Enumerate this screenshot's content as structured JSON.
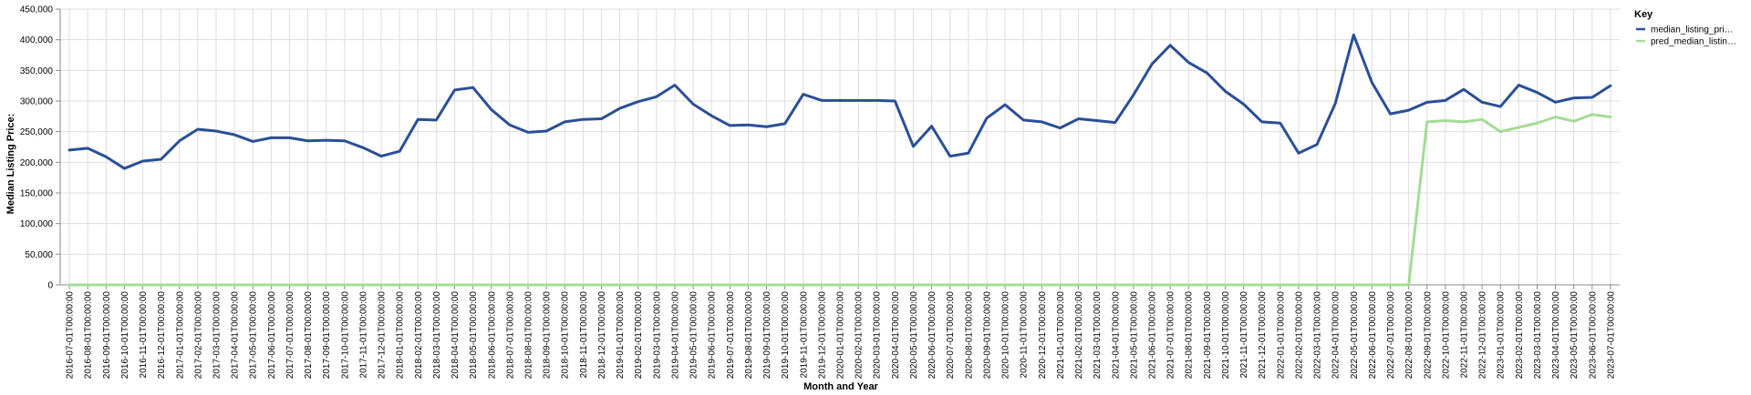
{
  "chart_data": {
    "type": "line",
    "xlabel": "Month and Year",
    "ylabel": "Median Listing Price:",
    "ylim": [
      0,
      450000
    ],
    "yticks": [
      "0",
      "50,000",
      "100,000",
      "150,000",
      "200,000",
      "250,000",
      "300,000",
      "350,000",
      "400,000",
      "450,000"
    ],
    "ytick_values": [
      0,
      50000,
      100000,
      150000,
      200000,
      250000,
      300000,
      350000,
      400000,
      450000
    ],
    "grid": true,
    "legend": {
      "title": "Key",
      "placement": "top-right"
    },
    "x": [
      "2016-07-01T00:00:00",
      "2016-08-01T00:00:00",
      "2016-09-01T00:00:00",
      "2016-10-01T00:00:00",
      "2016-11-01T00:00:00",
      "2016-12-01T00:00:00",
      "2017-01-01T00:00:00",
      "2017-02-01T00:00:00",
      "2017-03-01T00:00:00",
      "2017-04-01T00:00:00",
      "2017-05-01T00:00:00",
      "2017-06-01T00:00:00",
      "2017-07-01T00:00:00",
      "2017-08-01T00:00:00",
      "2017-09-01T00:00:00",
      "2017-10-01T00:00:00",
      "2017-11-01T00:00:00",
      "2017-12-01T00:00:00",
      "2018-01-01T00:00:00",
      "2018-02-01T00:00:00",
      "2018-03-01T00:00:00",
      "2018-04-01T00:00:00",
      "2018-05-01T00:00:00",
      "2018-06-01T00:00:00",
      "2018-07-01T00:00:00",
      "2018-08-01T00:00:00",
      "2018-09-01T00:00:00",
      "2018-10-01T00:00:00",
      "2018-11-01T00:00:00",
      "2018-12-01T00:00:00",
      "2019-01-01T00:00:00",
      "2019-02-01T00:00:00",
      "2019-03-01T00:00:00",
      "2019-04-01T00:00:00",
      "2019-05-01T00:00:00",
      "2019-06-01T00:00:00",
      "2019-07-01T00:00:00",
      "2019-08-01T00:00:00",
      "2019-09-01T00:00:00",
      "2019-10-01T00:00:00",
      "2019-11-01T00:00:00",
      "2019-12-01T00:00:00",
      "2020-01-01T00:00:00",
      "2020-02-01T00:00:00",
      "2020-03-01T00:00:00",
      "2020-04-01T00:00:00",
      "2020-05-01T00:00:00",
      "2020-06-01T00:00:00",
      "2020-07-01T00:00:00",
      "2020-08-01T00:00:00",
      "2020-09-01T00:00:00",
      "2020-10-01T00:00:00",
      "2020-11-01T00:00:00",
      "2020-12-01T00:00:00",
      "2021-01-01T00:00:00",
      "2021-02-01T00:00:00",
      "2021-03-01T00:00:00",
      "2021-04-01T00:00:00",
      "2021-05-01T00:00:00",
      "2021-06-01T00:00:00",
      "2021-07-01T00:00:00",
      "2021-08-01T00:00:00",
      "2021-09-01T00:00:00",
      "2021-10-01T00:00:00",
      "2021-11-01T00:00:00",
      "2021-12-01T00:00:00",
      "2022-01-01T00:00:00",
      "2022-02-01T00:00:00",
      "2022-03-01T00:00:00",
      "2022-04-01T00:00:00",
      "2022-05-01T00:00:00",
      "2022-06-01T00:00:00",
      "2022-07-01T00:00:00",
      "2022-08-01T00:00:00",
      "2022-09-01T00:00:00",
      "2022-10-01T00:00:00",
      "2022-11-01T00:00:00",
      "2022-12-01T00:00:00",
      "2023-01-01T00:00:00",
      "2023-02-01T00:00:00",
      "2023-03-01T00:00:00",
      "2023-04-01T00:00:00",
      "2023-05-01T00:00:00",
      "2023-06-01T00:00:00",
      "2023-07-01T00:00:00"
    ],
    "series": [
      {
        "name": "median_listing_pri…",
        "color": "#2a4f96",
        "values": [
          220000,
          223000,
          209000,
          190000,
          202000,
          205000,
          235000,
          254000,
          251000,
          245000,
          234000,
          240000,
          240000,
          235000,
          236000,
          235000,
          224000,
          210000,
          218000,
          270000,
          269000,
          318000,
          322000,
          286000,
          261000,
          249000,
          251000,
          266000,
          270000,
          271000,
          288000,
          299000,
          307000,
          326000,
          295000,
          276000,
          260000,
          261000,
          258000,
          263000,
          311000,
          301000,
          301000,
          301000,
          301000,
          300000,
          226000,
          259000,
          210000,
          215000,
          272000,
          294000,
          269000,
          266000,
          256000,
          271000,
          268000,
          265000,
          310000,
          360000,
          391000,
          363000,
          346000,
          316000,
          295000,
          266000,
          264000,
          215000,
          229000,
          296000,
          408000,
          330000,
          279000,
          285000,
          298000,
          301000,
          319000,
          298000,
          291000,
          326000,
          314000,
          298000,
          305000,
          306000,
          325000
        ]
      },
      {
        "name": "pred_median_listin…",
        "color": "#a3dc95",
        "values": [
          0,
          0,
          0,
          0,
          0,
          0,
          0,
          0,
          0,
          0,
          0,
          0,
          0,
          0,
          0,
          0,
          0,
          0,
          0,
          0,
          0,
          0,
          0,
          0,
          0,
          0,
          0,
          0,
          0,
          0,
          0,
          0,
          0,
          0,
          0,
          0,
          0,
          0,
          0,
          0,
          0,
          0,
          0,
          0,
          0,
          0,
          0,
          0,
          0,
          0,
          0,
          0,
          0,
          0,
          0,
          0,
          0,
          0,
          0,
          0,
          0,
          0,
          0,
          0,
          0,
          0,
          0,
          0,
          0,
          0,
          0,
          0,
          0,
          0,
          266000,
          268000,
          266000,
          270000,
          250000,
          257000,
          264000,
          274000,
          267000,
          278000,
          274000
        ]
      }
    ]
  }
}
